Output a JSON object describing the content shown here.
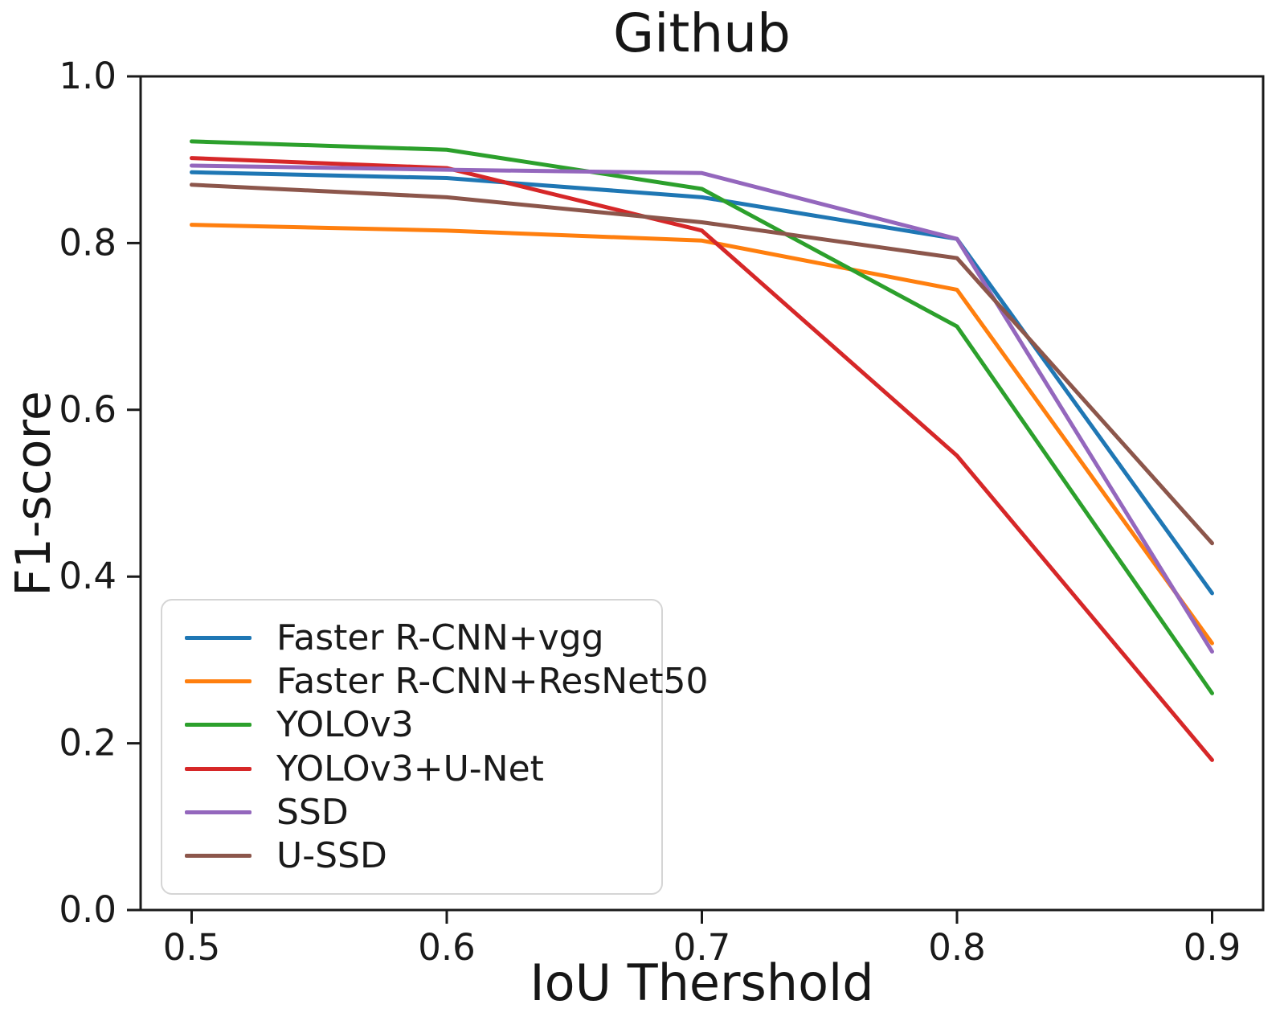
{
  "figure": {
    "background": "#ffffff",
    "text_color": "#1a1a1a",
    "axis_color": "#1a1a1a"
  },
  "chart_data": {
    "type": "line",
    "title": "Github",
    "xlabel": "IoU Thershold",
    "ylabel": "F1-score",
    "x": [
      0.5,
      0.6,
      0.7,
      0.8,
      0.9
    ],
    "series": [
      {
        "name": "Faster R-CNN+vgg",
        "color": "#1f77b4",
        "values": [
          0.885,
          0.878,
          0.855,
          0.805,
          0.38
        ]
      },
      {
        "name": "Faster R-CNN+ResNet50",
        "color": "#ff7f0e",
        "values": [
          0.822,
          0.815,
          0.803,
          0.744,
          0.32
        ]
      },
      {
        "name": "YOLOv3",
        "color": "#2ca02c",
        "values": [
          0.922,
          0.912,
          0.865,
          0.7,
          0.26
        ]
      },
      {
        "name": "YOLOv3+U-Net",
        "color": "#d62728",
        "values": [
          0.902,
          0.89,
          0.815,
          0.545,
          0.18
        ]
      },
      {
        "name": "SSD",
        "color": "#9467bd",
        "values": [
          0.893,
          0.888,
          0.884,
          0.805,
          0.31
        ]
      },
      {
        "name": "U-SSD",
        "color": "#8c564b",
        "values": [
          0.87,
          0.855,
          0.825,
          0.782,
          0.44
        ]
      }
    ],
    "xlim": [
      0.48,
      0.92
    ],
    "ylim": [
      0.0,
      1.0
    ],
    "xticks": [
      0.5,
      0.6,
      0.7,
      0.8,
      0.9
    ],
    "yticks": [
      0.0,
      0.2,
      0.4,
      0.6,
      0.8,
      1.0
    ],
    "grid": false,
    "legend_position": "lower-left",
    "line_width": 5
  }
}
